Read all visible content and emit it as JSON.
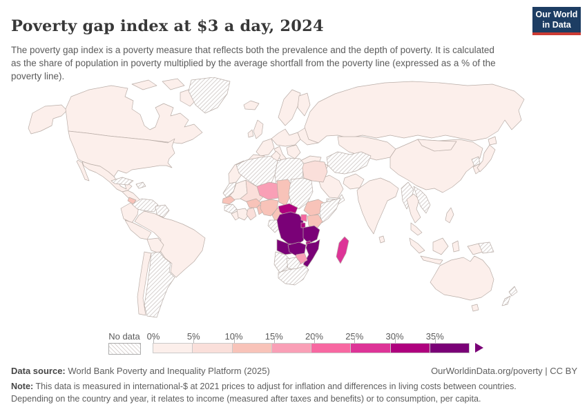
{
  "header": {
    "title": "Poverty gap index at $3 a day, 2024",
    "subtitle": "The poverty gap index is a poverty measure that reflects both the prevalence and the depth of poverty. It is calculated as the share of population in poverty multiplied by the average shortfall from the poverty line (expressed as a % of the poverty line).",
    "logo": {
      "line1": "Our World",
      "line2": "in Data",
      "bg": "#1d3d63",
      "accent": "#cc3b33"
    }
  },
  "legend": {
    "no_data_label": "No data",
    "bins": [
      {
        "tick": "0%",
        "color": "#fcefeb"
      },
      {
        "tick": "5%",
        "color": "#fadfda"
      },
      {
        "tick": "10%",
        "color": "#f8c3b9"
      },
      {
        "tick": "15%",
        "color": "#f99fb6"
      },
      {
        "tick": "20%",
        "color": "#f768a1"
      },
      {
        "tick": "25%",
        "color": "#dd3497"
      },
      {
        "tick": "30%",
        "color": "#ae017e"
      },
      {
        "tick": "35%",
        "color": "#7a0177"
      }
    ]
  },
  "map": {
    "bin_colors": {
      "b1": "#fcefeb",
      "b2": "#fadfda",
      "b3": "#f8c3b9",
      "b4": "#f99fb6",
      "b5": "#f768a1",
      "b6": "#dd3497",
      "b7": "#ae017e",
      "b8": "#7a0177"
    },
    "regions": {
      "alaska": "b1",
      "canada": "b1",
      "arctic-islands-1": "b1",
      "arctic-islands-2": "b1",
      "baffin": "b1",
      "greenland": "nodata",
      "usa": "b1",
      "mexico": "b1",
      "baja": "b1",
      "central-america": "b1",
      "honduras": "b3",
      "cuba": "nodata",
      "hispaniola": "nodata",
      "colombia": "b1",
      "venezuela": "nodata",
      "guyanas": "nodata",
      "brazil": "b1",
      "peru": "b1",
      "bolivia": "b1",
      "chile": "b1",
      "argentina": "nodata",
      "iceland": "b1",
      "uk": "b1",
      "ireland": "b1",
      "norway-sweden": "b1",
      "finland": "b1",
      "france": "b1",
      "iberia": "b1",
      "central-europe": "b1",
      "italy": "b1",
      "balkans": "b1",
      "east-europe": "b1",
      "turkey": "b1",
      "russia": "b1",
      "kazakhstan": "b1",
      "iran-afghanistan": "nodata",
      "levant-iraq": "b1",
      "saudi": "b1",
      "yemen-oman": "nodata",
      "pakistan": "b1",
      "india": "b1",
      "sri-lanka": "b1",
      "china": "b1",
      "mongolia": "b1",
      "north-korea": "nodata",
      "south-korea": "b1",
      "japan-hokkaido": "b1",
      "japan-honshu": "b1",
      "myanmar": "nodata",
      "thailand": "b1",
      "laos-vietnam": "nodata",
      "malaysia": "b1",
      "sumatra": "b1",
      "java": "b1",
      "borneo": "b1",
      "sulawesi": "b1",
      "west-new-guinea": "b1",
      "papua-new-guinea": "nodata",
      "philippines": "b1",
      "australia": "b1",
      "tasmania": "b1",
      "nz-north": "nodata",
      "nz-south": "nodata",
      "morocco": "b1",
      "algeria": "nodata",
      "tunisia": "b1",
      "libya": "nodata",
      "egypt": "b2",
      "western-sahara": "nodata",
      "mauritania": "b1",
      "mali": "b2",
      "niger": "b4",
      "chad": "b3",
      "sudan": "nodata",
      "ethiopia": "b3",
      "somalia": "nodata",
      "senegal": "b3",
      "guinea": "nodata",
      "sierra-liberia": "b1",
      "cote-divoire": "b1",
      "ghana": "b2",
      "burkina-faso": "b3",
      "togo-benin": "b3",
      "nigeria": "b3",
      "cameroon": "b3",
      "central-african-republic": "b7",
      "gabon-congo": "nodata",
      "drc": "b8",
      "uganda": "b5",
      "kenya": "b3",
      "rwanda-burundi": "b7",
      "tanzania": "b8",
      "angola": "b8",
      "zambia": "b8",
      "malawi": "b7",
      "mozambique": "b8",
      "zimbabwe": "b4",
      "namibia": "nodata",
      "botswana": "nodata",
      "south-africa": "nodata",
      "madagascar": "b6"
    }
  },
  "footer": {
    "source_label": "Data source:",
    "source_text": " World Bank Poverty and Inequality Platform (2025)",
    "attribution": "OurWorldinData.org/poverty | CC BY",
    "note_label": "Note:",
    "note_text": " This data is measured in international-$ at 2021 prices to adjust for inflation and differences in living costs between countries. Depending on the country and year, it relates to income (measured after taxes and benefits) or to consumption, per capita."
  },
  "chart_data": {
    "type": "heatmap",
    "subtype": "choropleth-world-map",
    "title": "Poverty gap index at $3 a day, 2024",
    "unit": "%",
    "legend_ticks": [
      "0%",
      "5%",
      "10%",
      "15%",
      "20%",
      "25%",
      "30%",
      "35%"
    ],
    "bins": [
      {
        "range": "0-5%",
        "color": "#fcefeb"
      },
      {
        "range": "5-10%",
        "color": "#fadfda"
      },
      {
        "range": "10-15%",
        "color": "#f8c3b9"
      },
      {
        "range": "15-20%",
        "color": "#f99fb6"
      },
      {
        "range": "20-25%",
        "color": "#f768a1"
      },
      {
        "range": "25-30%",
        "color": "#dd3497"
      },
      {
        "range": "30-35%",
        "color": "#ae017e"
      },
      {
        "range": "35%+",
        "color": "#7a0177"
      }
    ],
    "no_data_style": "diagonal-hatch",
    "readings_by_bin": {
      "35%+": [
        "Democratic Republic of Congo",
        "Angola",
        "Zambia",
        "Tanzania",
        "Mozambique"
      ],
      "30-35%": [
        "Central African Republic",
        "Malawi",
        "Rwanda",
        "Burundi"
      ],
      "25-30%": [
        "Madagascar"
      ],
      "20-25%": [
        "Uganda"
      ],
      "15-20%": [
        "Niger",
        "Zimbabwe"
      ],
      "10-15%": [
        "Chad",
        "Nigeria",
        "Cameroon",
        "Ethiopia",
        "Kenya",
        "Burkina Faso",
        "Senegal",
        "Benin",
        "Honduras"
      ],
      "5-10%": [
        "Mali",
        "Egypt",
        "Ghana"
      ],
      "0-5%": [
        "United States",
        "Canada",
        "Mexico",
        "Brazil",
        "Europe",
        "Russia",
        "China",
        "India",
        "Australia",
        "Indonesia"
      ],
      "no_data": [
        "Greenland",
        "Algeria",
        "Libya",
        "Sudan",
        "Somalia",
        "Western Sahara",
        "Guinea",
        "Congo",
        "Namibia",
        "Botswana",
        "South Africa",
        "Venezuela",
        "Argentina",
        "Cuba",
        "Iran",
        "Afghanistan",
        "Yemen",
        "Myanmar",
        "Laos",
        "Vietnam",
        "North Korea",
        "Papua New Guinea",
        "New Zealand"
      ]
    }
  }
}
